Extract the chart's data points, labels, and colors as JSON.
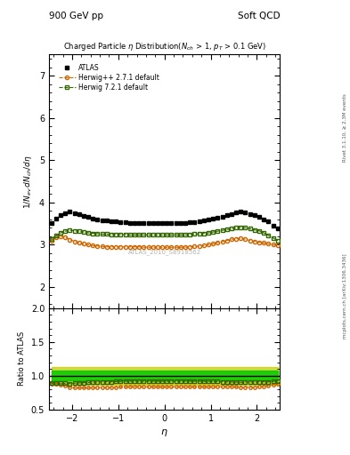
{
  "title_top_left": "900 GeV pp",
  "title_top_right": "Soft QCD",
  "plot_title": "Charged Particle $\\eta$ Distribution($N_{ch}$ > 1, $p_T$ > 0.1 GeV)",
  "ylabel_main": "$1/N_{ev}\\,dN_{ch}/d\\eta$",
  "ylabel_ratio": "Ratio to ATLAS",
  "xlabel": "$\\eta$",
  "right_label_top": "Rivet 3.1.10, ≥ 2.3M events",
  "right_label_bottom": "mcplots.cern.ch [arXiv:1306.3436]",
  "watermark": "ATLAS_2010_S8918562",
  "xlim": [
    -2.5,
    2.5
  ],
  "ylim_main": [
    1.5,
    7.5
  ],
  "ylim_ratio": [
    0.5,
    2.0
  ],
  "yticks_main": [
    2,
    3,
    4,
    5,
    6,
    7
  ],
  "yticks_ratio": [
    0.5,
    1.0,
    1.5,
    2.0
  ],
  "atlas_color": "#000000",
  "herwig_color": "#cc6600",
  "herwig7_color": "#336600",
  "band_color_inner": "#00cc00",
  "band_color_outer": "#cccc00",
  "eta_atlas": [
    -2.45,
    -2.35,
    -2.25,
    -2.15,
    -2.05,
    -1.95,
    -1.85,
    -1.75,
    -1.65,
    -1.55,
    -1.45,
    -1.35,
    -1.25,
    -1.15,
    -1.05,
    -0.95,
    -0.85,
    -0.75,
    -0.65,
    -0.55,
    -0.45,
    -0.35,
    -0.25,
    -0.15,
    -0.05,
    0.05,
    0.15,
    0.25,
    0.35,
    0.45,
    0.55,
    0.65,
    0.75,
    0.85,
    0.95,
    1.05,
    1.15,
    1.25,
    1.35,
    1.45,
    1.55,
    1.65,
    1.75,
    1.85,
    1.95,
    2.05,
    2.15,
    2.25,
    2.35,
    2.45
  ],
  "atlas_vals": [
    3.52,
    3.62,
    3.7,
    3.75,
    3.78,
    3.75,
    3.72,
    3.68,
    3.65,
    3.62,
    3.6,
    3.58,
    3.57,
    3.56,
    3.55,
    3.54,
    3.53,
    3.52,
    3.52,
    3.52,
    3.52,
    3.52,
    3.52,
    3.52,
    3.52,
    3.52,
    3.52,
    3.52,
    3.52,
    3.52,
    3.53,
    3.54,
    3.55,
    3.57,
    3.59,
    3.62,
    3.64,
    3.67,
    3.7,
    3.73,
    3.76,
    3.79,
    3.76,
    3.73,
    3.7,
    3.67,
    3.6,
    3.55,
    3.45,
    3.38
  ],
  "herwig_vals": [
    3.1,
    3.17,
    3.2,
    3.18,
    3.12,
    3.08,
    3.05,
    3.02,
    3.0,
    2.98,
    2.97,
    2.96,
    2.95,
    2.95,
    2.95,
    2.95,
    2.95,
    2.95,
    2.95,
    2.95,
    2.94,
    2.94,
    2.94,
    2.94,
    2.94,
    2.94,
    2.94,
    2.94,
    2.94,
    2.94,
    2.95,
    2.96,
    2.97,
    2.98,
    3.0,
    3.02,
    3.05,
    3.07,
    3.1,
    3.13,
    3.14,
    3.15,
    3.13,
    3.1,
    3.08,
    3.06,
    3.04,
    3.02,
    3.0,
    2.98
  ],
  "herwig7_vals": [
    3.14,
    3.22,
    3.28,
    3.32,
    3.34,
    3.33,
    3.32,
    3.3,
    3.28,
    3.27,
    3.26,
    3.25,
    3.25,
    3.24,
    3.24,
    3.24,
    3.24,
    3.23,
    3.23,
    3.23,
    3.23,
    3.23,
    3.23,
    3.23,
    3.23,
    3.23,
    3.23,
    3.23,
    3.23,
    3.23,
    3.24,
    3.25,
    3.26,
    3.27,
    3.28,
    3.3,
    3.32,
    3.34,
    3.36,
    3.38,
    3.4,
    3.41,
    3.4,
    3.38,
    3.35,
    3.33,
    3.28,
    3.22,
    3.16,
    3.1
  ]
}
